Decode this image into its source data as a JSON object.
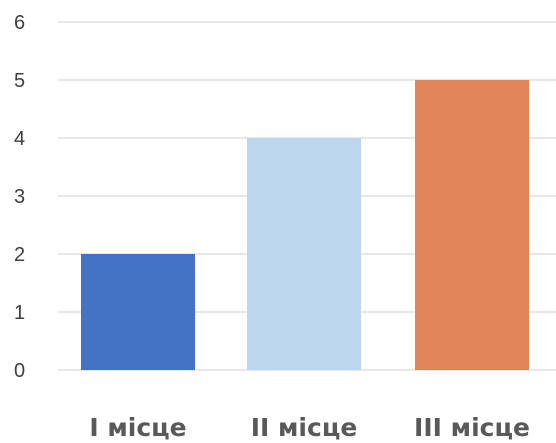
{
  "chart_data": {
    "type": "bar",
    "title": "",
    "xlabel": "",
    "ylabel": "",
    "categories": [
      "I місце",
      "II місце",
      "III місце"
    ],
    "values": [
      2,
      4,
      5
    ],
    "colors": [
      "#4472c4",
      "#bdd7ee",
      "#e2855b"
    ],
    "ylim": [
      0,
      6
    ],
    "yticks": [
      "0",
      "1",
      "2",
      "3",
      "4",
      "5",
      "6"
    ],
    "grid": true,
    "legend": "none"
  }
}
